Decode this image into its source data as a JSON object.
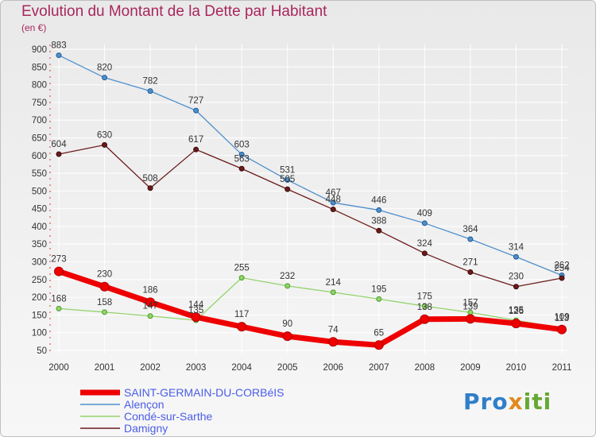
{
  "header": {
    "title": "Evolution du Montant de la Dette par Habitant",
    "unit": "(en €)"
  },
  "logo": {
    "text_start": "Pro",
    "text_mid": "x",
    "text_end": "iti"
  },
  "colors": {
    "saint_germain": "#ee0000",
    "alencon": "#4f8fcb",
    "conde": "#93d36b",
    "damigny": "#6b1b1b",
    "grid": "#ffffff",
    "axis_text": "#333333",
    "legend_text": "#4a5de8"
  },
  "chart_data": {
    "type": "line",
    "title": "Evolution du Montant de la Dette par Habitant",
    "subtitle": "(en €)",
    "xlabel": "",
    "ylabel": "",
    "x": [
      "2000",
      "2001",
      "2002",
      "2003",
      "2004",
      "2005",
      "2006",
      "2007",
      "2008",
      "2009",
      "2010",
      "2011"
    ],
    "ylim": [
      50,
      900
    ],
    "yticks": [
      50,
      100,
      150,
      200,
      250,
      300,
      350,
      400,
      450,
      500,
      550,
      600,
      650,
      700,
      750,
      800,
      850,
      900
    ],
    "grid": true,
    "legend_position": "bottom-left",
    "series": [
      {
        "name": "SAINT-GERMAIN-DU-CORBéIS",
        "values": [
          273,
          230,
          186,
          144,
          117,
          90,
          74,
          65,
          138,
          139,
          126,
          109
        ],
        "labels": [
          "273",
          "230",
          "186",
          "144",
          "117",
          "90",
          "74",
          "65",
          "138",
          "139",
          "126",
          "109"
        ]
      },
      {
        "name": "Alençon",
        "values": [
          883,
          820,
          782,
          727,
          603,
          531,
          467,
          446,
          409,
          364,
          314,
          262
        ],
        "labels": [
          "883",
          "820",
          "782",
          "727",
          "603",
          "531",
          "467",
          "446",
          "409",
          "364",
          "314",
          "262"
        ]
      },
      {
        "name": "Condé-sur-Sarthe",
        "values": [
          168,
          158,
          147,
          135,
          255,
          232,
          214,
          195,
          175,
          157,
          135,
          113
        ],
        "labels": [
          "168",
          "158",
          "147",
          "135",
          "255",
          "232",
          "214",
          "195",
          "175",
          "157",
          "135",
          "113"
        ]
      },
      {
        "name": "Damigny",
        "values": [
          604,
          630,
          508,
          617,
          563,
          505,
          448,
          388,
          324,
          271,
          230,
          254
        ],
        "labels": [
          "604",
          "630",
          "508",
          "617",
          "563",
          "505",
          "448",
          "388",
          "324",
          "271",
          "230",
          "254"
        ]
      }
    ]
  }
}
